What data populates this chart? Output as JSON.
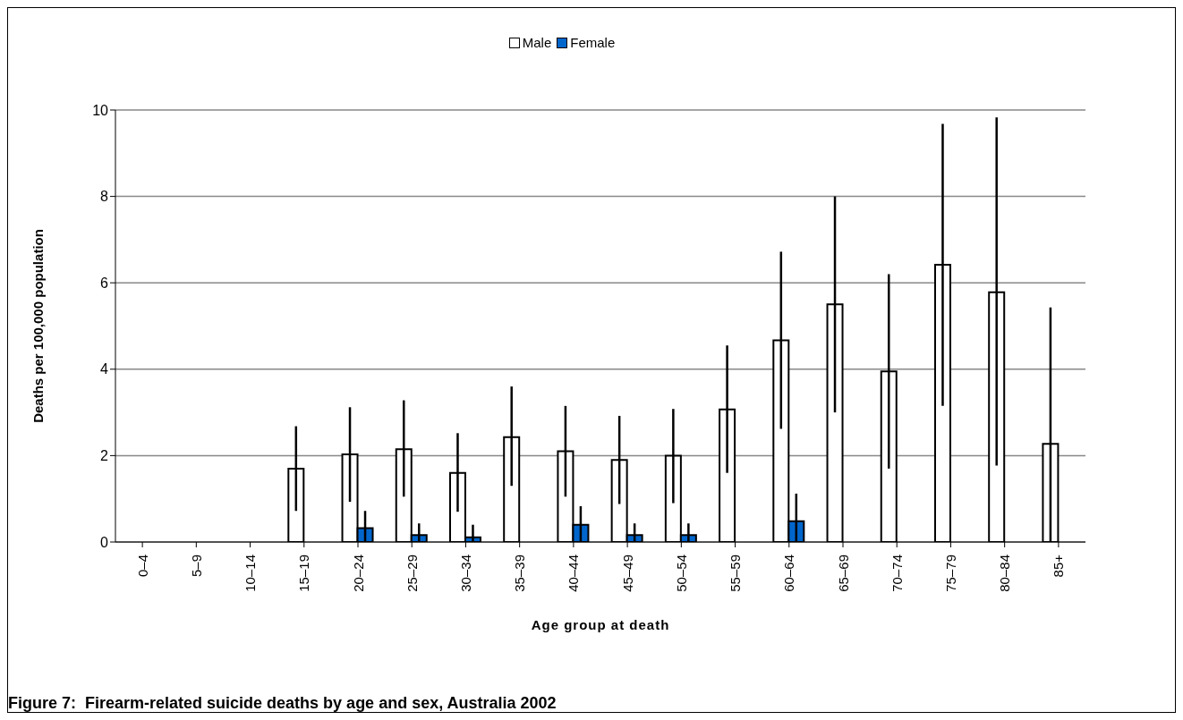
{
  "chart_data": {
    "type": "bar",
    "title": "Figure 7:  Firearm-related suicide deaths by age and sex, Australia 2002",
    "xlabel": "Age group at death",
    "ylabel": "Deaths per 100,000 population",
    "categories": [
      "0–4",
      "5–9",
      "10–14",
      "15–19",
      "20–24",
      "25–29",
      "30–34",
      "35–39",
      "40–44",
      "45–49",
      "50–54",
      "55–59",
      "60–64",
      "65–69",
      "70–74",
      "75–79",
      "80–84",
      "85+"
    ],
    "series": [
      {
        "name": "Male",
        "color": "#ffffff",
        "values": [
          0,
          0,
          0,
          1.7,
          2.03,
          2.15,
          1.6,
          2.43,
          2.1,
          1.9,
          2.0,
          3.07,
          4.67,
          5.5,
          3.95,
          6.42,
          5.78,
          2.27
        ],
        "errors": [
          null,
          null,
          null,
          [
            0.72,
            2.68
          ],
          [
            0.93,
            3.12
          ],
          [
            1.05,
            3.28
          ],
          [
            0.7,
            2.52
          ],
          [
            1.3,
            3.6
          ],
          [
            1.05,
            3.15
          ],
          [
            0.88,
            2.92
          ],
          [
            0.9,
            3.08
          ],
          [
            1.6,
            4.55
          ],
          [
            2.62,
            6.72
          ],
          [
            3.0,
            8.0
          ],
          [
            1.7,
            6.2
          ],
          [
            3.15,
            9.68
          ],
          [
            1.77,
            9.83
          ],
          [
            0,
            5.43
          ]
        ]
      },
      {
        "name": "Female",
        "color": "#0066cc",
        "values": [
          0,
          0,
          0,
          0,
          0.32,
          0.16,
          0.11,
          0,
          0.4,
          0.16,
          0.16,
          0,
          0.48,
          0,
          0,
          0,
          0,
          0
        ],
        "errors": [
          null,
          null,
          null,
          null,
          [
            0,
            0.72
          ],
          [
            0,
            0.43
          ],
          [
            0,
            0.4
          ],
          null,
          [
            0,
            0.83
          ],
          [
            0,
            0.43
          ],
          [
            0,
            0.43
          ],
          null,
          [
            0,
            1.12
          ],
          null,
          null,
          null,
          null,
          null
        ]
      }
    ],
    "ylim": [
      0,
      10
    ],
    "yticks": [
      0,
      2,
      4,
      6,
      8,
      10
    ],
    "grid": "y",
    "legend": "top"
  }
}
